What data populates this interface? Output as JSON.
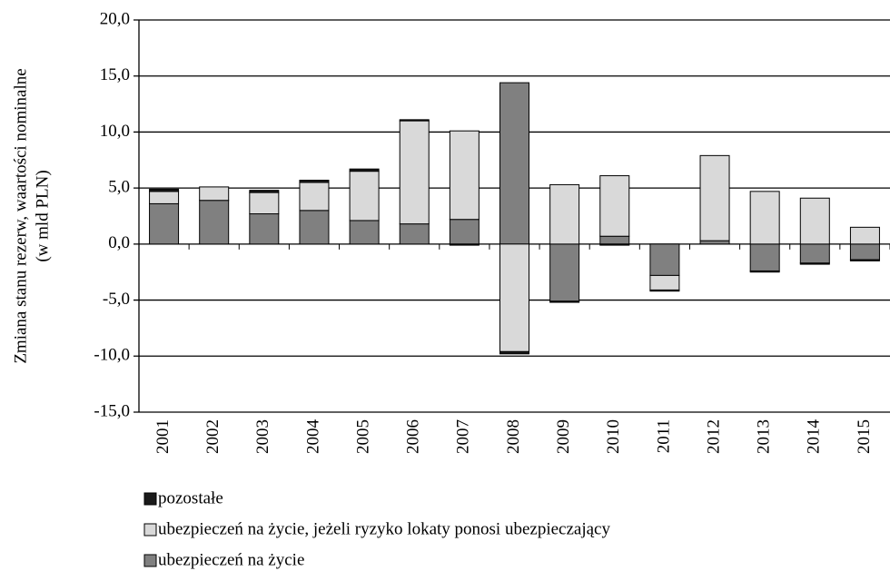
{
  "chart_data": {
    "type": "bar",
    "stacked": true,
    "ylabel": [
      "Zmiana stanu rezerw, waartości nominalne",
      "(w mld PLN)"
    ],
    "categories": [
      "2001",
      "2002",
      "2003",
      "2004",
      "2005",
      "2006",
      "2007",
      "2008",
      "2009",
      "2010",
      "2011",
      "2012",
      "2013",
      "2014",
      "2015"
    ],
    "series": [
      {
        "name": "pozostałe",
        "color": "#1a1a1a",
        "values": [
          0.2,
          0,
          0.2,
          0.2,
          0.2,
          0.1,
          -0.1,
          -0.2,
          -0.1,
          -0.1,
          -0.1,
          0,
          -0.1,
          -0.1,
          -0.1
        ]
      },
      {
        "name": "ubezpieczeń na życie, jeżeli ryzyko lokaty ponosi ubezpieczający",
        "color": "#d9d9d9",
        "values": [
          1.1,
          1.2,
          1.9,
          2.5,
          4.4,
          9.2,
          7.9,
          -9.6,
          5.3,
          5.4,
          -1.3,
          7.6,
          4.7,
          4.1,
          1.5
        ]
      },
      {
        "name": "ubezpieczeń na życie",
        "color": "#808080",
        "values": [
          3.6,
          3.9,
          2.7,
          3.0,
          2.1,
          1.8,
          2.2,
          14.4,
          -5.1,
          0.7,
          -2.8,
          0.3,
          -2.4,
          -1.7,
          -1.4
        ]
      }
    ],
    "ylim": [
      -15,
      20
    ],
    "yticks": [
      {
        "value": -15,
        "label": "-15,0"
      },
      {
        "value": -10,
        "label": "-10,0"
      },
      {
        "value": -5,
        "label": "-5,0"
      },
      {
        "value": 0,
        "label": "0,0"
      },
      {
        "value": 5,
        "label": "5,0"
      },
      {
        "value": 10,
        "label": "10,0"
      },
      {
        "value": 15,
        "label": "15,0"
      },
      {
        "value": 20,
        "label": "20,0"
      }
    ],
    "grid": true,
    "legend": "bottom"
  }
}
